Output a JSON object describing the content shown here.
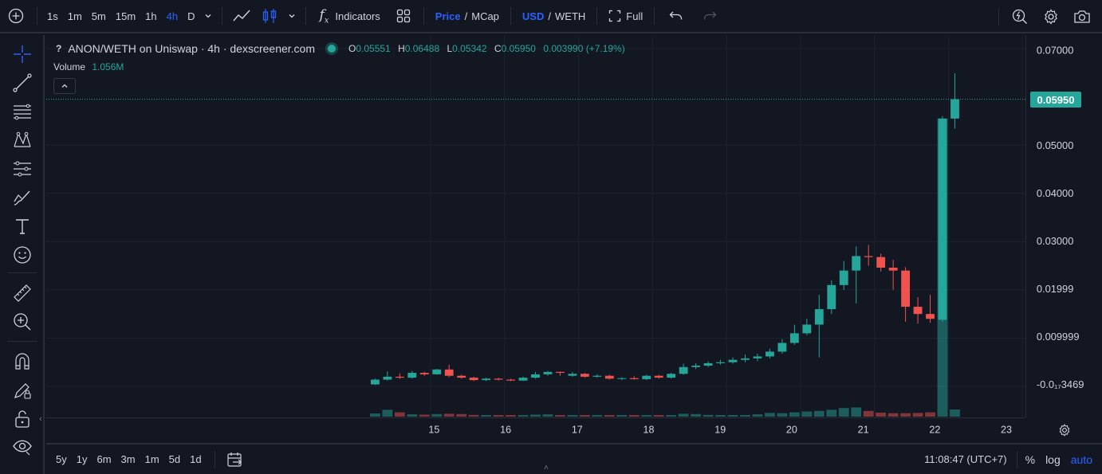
{
  "topbar": {
    "intervals": [
      {
        "label": "1s",
        "active": false
      },
      {
        "label": "1m",
        "active": false
      },
      {
        "label": "5m",
        "active": false
      },
      {
        "label": "15m",
        "active": false
      },
      {
        "label": "1h",
        "active": false
      },
      {
        "label": "4h",
        "active": true
      },
      {
        "label": "D",
        "active": false
      }
    ],
    "indicators_label": "Indicators",
    "price_label": "Price",
    "mcap_label": "MCap",
    "usd_label": "USD",
    "weth_label": "WETH",
    "slash": "/",
    "full_label": "Full"
  },
  "legend": {
    "symbol_prefix": "?",
    "title": "ANON/WETH on Uniswap · 4h · dexscreener.com",
    "o_key": "O",
    "o_val": "0.05551",
    "h_key": "H",
    "h_val": "0.06488",
    "l_key": "L",
    "l_val": "0.05342",
    "c_key": "C",
    "c_val": "0.05950",
    "change": "0.003990 (+7.19%)",
    "volume_label": "Volume",
    "volume_value": "1.056M"
  },
  "price_axis": {
    "ticks": [
      "0.07000",
      "0.05000",
      "0.04000",
      "0.03000",
      "0.01999",
      "0.009999",
      "-0.0₁₇3469"
    ],
    "tick_values": [
      0.07,
      0.05,
      0.04,
      0.03,
      0.02,
      0.01,
      0.0
    ],
    "current_price": "0.05950",
    "current_value": 0.0595
  },
  "time_axis": {
    "labels": [
      "15",
      "16",
      "17",
      "18",
      "19",
      "20",
      "21",
      "22",
      "23"
    ]
  },
  "bottombar": {
    "ranges": [
      "5y",
      "1y",
      "6m",
      "3m",
      "1m",
      "5d",
      "1d"
    ],
    "time": "11:08:47 (UTC+7)",
    "percent_label": "%",
    "log_label": "log",
    "auto_label": "auto"
  },
  "colors": {
    "up": "#26a69a",
    "down": "#ef5350",
    "accent": "#2962ff",
    "bg": "#131722",
    "grid": "#1e222d"
  },
  "chart_data": {
    "type": "candlestick",
    "x_start": 14.25,
    "x_step": 0.1667,
    "candles": [
      {
        "o": 0.0004,
        "h": 0.0016,
        "l": 0.0003,
        "c": 0.0014,
        "v": 0.22
      },
      {
        "o": 0.0014,
        "h": 0.0031,
        "l": 0.0012,
        "c": 0.002,
        "v": 0.48
      },
      {
        "o": 0.002,
        "h": 0.0027,
        "l": 0.0015,
        "c": 0.0018,
        "v": 0.3
      },
      {
        "o": 0.0018,
        "h": 0.0032,
        "l": 0.0016,
        "c": 0.0028,
        "v": 0.16
      },
      {
        "o": 0.0028,
        "h": 0.003,
        "l": 0.0022,
        "c": 0.0025,
        "v": 0.14
      },
      {
        "o": 0.0025,
        "h": 0.0036,
        "l": 0.0024,
        "c": 0.0035,
        "v": 0.18
      },
      {
        "o": 0.0035,
        "h": 0.0045,
        "l": 0.0019,
        "c": 0.0022,
        "v": 0.2
      },
      {
        "o": 0.0022,
        "h": 0.0024,
        "l": 0.0016,
        "c": 0.0018,
        "v": 0.18
      },
      {
        "o": 0.0018,
        "h": 0.002,
        "l": 0.0011,
        "c": 0.0013,
        "v": 0.12
      },
      {
        "o": 0.0013,
        "h": 0.0018,
        "l": 0.0011,
        "c": 0.0016,
        "v": 0.1
      },
      {
        "o": 0.0016,
        "h": 0.0018,
        "l": 0.0012,
        "c": 0.0014,
        "v": 0.09
      },
      {
        "o": 0.0014,
        "h": 0.0016,
        "l": 0.0011,
        "c": 0.0012,
        "v": 0.08
      },
      {
        "o": 0.0012,
        "h": 0.002,
        "l": 0.0011,
        "c": 0.0018,
        "v": 0.1
      },
      {
        "o": 0.0018,
        "h": 0.003,
        "l": 0.0016,
        "c": 0.0025,
        "v": 0.14
      },
      {
        "o": 0.0025,
        "h": 0.0032,
        "l": 0.0022,
        "c": 0.003,
        "v": 0.16
      },
      {
        "o": 0.003,
        "h": 0.0031,
        "l": 0.0022,
        "c": 0.0028,
        "v": 0.1
      },
      {
        "o": 0.0022,
        "h": 0.003,
        "l": 0.002,
        "c": 0.0026,
        "v": 0.08
      },
      {
        "o": 0.0026,
        "h": 0.0028,
        "l": 0.0018,
        "c": 0.002,
        "v": 0.09
      },
      {
        "o": 0.002,
        "h": 0.0025,
        "l": 0.0018,
        "c": 0.0022,
        "v": 0.07
      },
      {
        "o": 0.0022,
        "h": 0.0024,
        "l": 0.0014,
        "c": 0.0016,
        "v": 0.08
      },
      {
        "o": 0.0016,
        "h": 0.0019,
        "l": 0.0013,
        "c": 0.0017,
        "v": 0.06
      },
      {
        "o": 0.0017,
        "h": 0.0021,
        "l": 0.0014,
        "c": 0.0015,
        "v": 0.06
      },
      {
        "o": 0.0015,
        "h": 0.0024,
        "l": 0.0013,
        "c": 0.0022,
        "v": 0.07
      },
      {
        "o": 0.0022,
        "h": 0.0024,
        "l": 0.0016,
        "c": 0.0018,
        "v": 0.08
      },
      {
        "o": 0.0018,
        "h": 0.0028,
        "l": 0.0016,
        "c": 0.0026,
        "v": 0.09
      },
      {
        "o": 0.0026,
        "h": 0.0047,
        "l": 0.0024,
        "c": 0.004,
        "v": 0.2
      },
      {
        "o": 0.004,
        "h": 0.0048,
        "l": 0.0036,
        "c": 0.0043,
        "v": 0.18
      },
      {
        "o": 0.0043,
        "h": 0.0052,
        "l": 0.004,
        "c": 0.0048,
        "v": 0.12
      },
      {
        "o": 0.0048,
        "h": 0.0055,
        "l": 0.0045,
        "c": 0.005,
        "v": 0.1
      },
      {
        "o": 0.005,
        "h": 0.006,
        "l": 0.0047,
        "c": 0.0055,
        "v": 0.09
      },
      {
        "o": 0.0055,
        "h": 0.0066,
        "l": 0.005,
        "c": 0.0058,
        "v": 0.1
      },
      {
        "o": 0.0058,
        "h": 0.0068,
        "l": 0.0052,
        "c": 0.0062,
        "v": 0.16
      },
      {
        "o": 0.0062,
        "h": 0.0078,
        "l": 0.0058,
        "c": 0.0072,
        "v": 0.26
      },
      {
        "o": 0.0072,
        "h": 0.0098,
        "l": 0.0068,
        "c": 0.009,
        "v": 0.24
      },
      {
        "o": 0.009,
        "h": 0.0128,
        "l": 0.0086,
        "c": 0.011,
        "v": 0.3
      },
      {
        "o": 0.011,
        "h": 0.014,
        "l": 0.0106,
        "c": 0.0128,
        "v": 0.36
      },
      {
        "o": 0.0128,
        "h": 0.019,
        "l": 0.006,
        "c": 0.016,
        "v": 0.4
      },
      {
        "o": 0.016,
        "h": 0.022,
        "l": 0.015,
        "c": 0.021,
        "v": 0.48
      },
      {
        "o": 0.021,
        "h": 0.026,
        "l": 0.02,
        "c": 0.024,
        "v": 0.6
      },
      {
        "o": 0.024,
        "h": 0.029,
        "l": 0.0172,
        "c": 0.027,
        "v": 0.64
      },
      {
        "o": 0.027,
        "h": 0.0293,
        "l": 0.025,
        "c": 0.0268,
        "v": 0.4
      },
      {
        "o": 0.0268,
        "h": 0.0275,
        "l": 0.0238,
        "c": 0.0246,
        "v": 0.28
      },
      {
        "o": 0.0246,
        "h": 0.0262,
        "l": 0.02,
        "c": 0.024,
        "v": 0.24
      },
      {
        "o": 0.024,
        "h": 0.0247,
        "l": 0.0134,
        "c": 0.0165,
        "v": 0.24
      },
      {
        "o": 0.0165,
        "h": 0.0185,
        "l": 0.013,
        "c": 0.015,
        "v": 0.26
      },
      {
        "o": 0.015,
        "h": 0.019,
        "l": 0.0132,
        "c": 0.014,
        "v": 0.3
      },
      {
        "o": 0.0138,
        "h": 0.056,
        "l": 0.0134,
        "c": 0.0555,
        "v": 6.5
      },
      {
        "o": 0.0555,
        "h": 0.0649,
        "l": 0.0534,
        "c": 0.0595,
        "v": 0.5
      }
    ],
    "ylim": [
      -0.007,
      0.077
    ],
    "xlim": [
      14.0,
      23.5
    ]
  }
}
